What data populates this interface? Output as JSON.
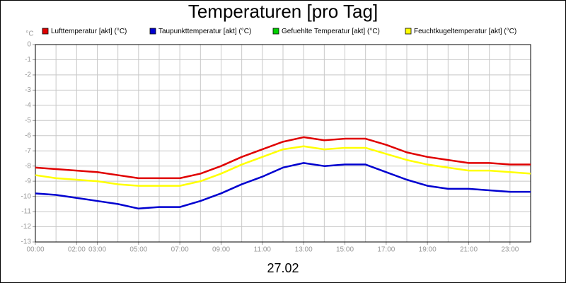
{
  "chart_data": {
    "type": "line",
    "title": "Temperaturen [pro Tag]",
    "ylabel": "°C",
    "xlabel": "27.02",
    "x": [
      0,
      1,
      2,
      3,
      4,
      5,
      6,
      7,
      8,
      9,
      10,
      11,
      12,
      13,
      14,
      15,
      16,
      17,
      18,
      19,
      20,
      21,
      22,
      23,
      24
    ],
    "xlim": [
      0,
      24
    ],
    "xticks": [
      {
        "value": 0,
        "label": "00:00"
      },
      {
        "value": 2,
        "label": "02:00"
      },
      {
        "value": 3,
        "label": "03:00"
      },
      {
        "value": 5,
        "label": "05:00"
      },
      {
        "value": 7,
        "label": "07:00"
      },
      {
        "value": 9,
        "label": "09:00"
      },
      {
        "value": 11,
        "label": "11:00"
      },
      {
        "value": 13,
        "label": "13:00"
      },
      {
        "value": 15,
        "label": "15:00"
      },
      {
        "value": 17,
        "label": "17:00"
      },
      {
        "value": 19,
        "label": "19:00"
      },
      {
        "value": 21,
        "label": "21:00"
      },
      {
        "value": 23,
        "label": "23:00"
      }
    ],
    "ylim": [
      -13,
      0
    ],
    "yticks": [
      0,
      -1,
      -2,
      -3,
      -4,
      -5,
      -6,
      -7,
      -8,
      -9,
      -10,
      -11,
      -12,
      -13
    ],
    "grid": true,
    "legend": "top",
    "series": [
      {
        "name": "Lufttemperatur [akt] (°C)",
        "color": "#e00000",
        "values": [
          -8.1,
          -8.2,
          -8.3,
          -8.4,
          -8.6,
          -8.8,
          -8.8,
          -8.8,
          -8.5,
          -8.0,
          -7.4,
          -6.9,
          -6.4,
          -6.1,
          -6.3,
          -6.2,
          -6.2,
          -6.6,
          -7.1,
          -7.4,
          -7.6,
          -7.8,
          -7.8,
          -7.9,
          -7.9
        ]
      },
      {
        "name": "Taupunkttemperatur [akt] (°C)",
        "color": "#0000d0",
        "values": [
          -9.8,
          -9.9,
          -10.1,
          -10.3,
          -10.5,
          -10.8,
          -10.7,
          -10.7,
          -10.3,
          -9.8,
          -9.2,
          -8.7,
          -8.1,
          -7.8,
          -8.0,
          -7.9,
          -7.9,
          -8.4,
          -8.9,
          -9.3,
          -9.5,
          -9.5,
          -9.6,
          -9.7,
          -9.7
        ]
      },
      {
        "name": "Gefuehlte Temperatur [akt] (°C)",
        "color": "#00d000",
        "values": [
          null,
          null,
          null,
          null,
          null,
          null,
          null,
          null,
          null,
          null,
          null,
          null,
          null,
          null,
          null,
          null,
          null,
          null,
          null,
          null,
          null,
          null,
          null,
          null,
          null
        ]
      },
      {
        "name": "Feuchtkugeltemperatur [akt] (°C)",
        "color": "#ffff00",
        "values": [
          -8.6,
          -8.8,
          -8.9,
          -9.0,
          -9.2,
          -9.3,
          -9.3,
          -9.3,
          -9.0,
          -8.5,
          -7.9,
          -7.4,
          -6.9,
          -6.7,
          -6.9,
          -6.8,
          -6.8,
          -7.2,
          -7.6,
          -7.9,
          -8.1,
          -8.3,
          -8.3,
          -8.4,
          -8.5
        ]
      }
    ]
  }
}
